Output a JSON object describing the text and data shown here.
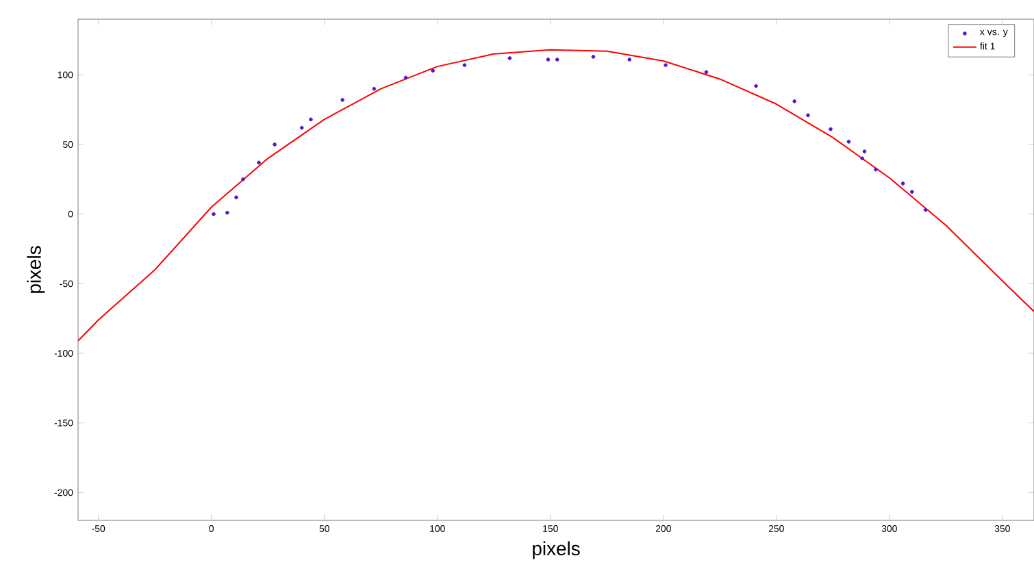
{
  "chart_data": {
    "type": "scatter",
    "xlabel": "pixels",
    "ylabel": "pixels",
    "xlim": [
      -59,
      364
    ],
    "ylim": [
      -220,
      140
    ],
    "xticks": [
      -50,
      0,
      50,
      100,
      150,
      200,
      250,
      300,
      350
    ],
    "yticks": [
      -200,
      -150,
      -100,
      -50,
      0,
      50,
      100
    ],
    "legend": "top right",
    "grid": false,
    "series": [
      {
        "name": "x vs. y",
        "marker": "circle",
        "color": "#5a14c8",
        "x": [
          1,
          7,
          11,
          14,
          21,
          28,
          40,
          44,
          58,
          72,
          86,
          98,
          112,
          132,
          149,
          153,
          169,
          185,
          201,
          219,
          241,
          258,
          264,
          274,
          282,
          288,
          289,
          294,
          306,
          310,
          316
        ],
        "values": [
          0,
          1,
          12,
          25,
          37,
          50,
          62,
          68,
          82,
          90,
          98,
          103,
          107,
          112,
          111,
          111,
          113,
          111,
          107,
          102,
          92,
          81,
          71,
          61,
          52,
          40,
          45,
          32,
          22,
          16,
          3
        ]
      },
      {
        "name": "fit 1",
        "type": "line",
        "marker": "none",
        "line_style": "solid",
        "color": "#ff0000",
        "x": [
          -59,
          -50,
          -25,
          0,
          25,
          50,
          75,
          100,
          125,
          150,
          175,
          200,
          225,
          250,
          275,
          300,
          325,
          350,
          364
        ],
        "values": [
          -91,
          -76,
          -40,
          5,
          40,
          68,
          90,
          106,
          115,
          118,
          117,
          110,
          97,
          79,
          55,
          26,
          -8,
          -48,
          -70
        ]
      }
    ]
  }
}
